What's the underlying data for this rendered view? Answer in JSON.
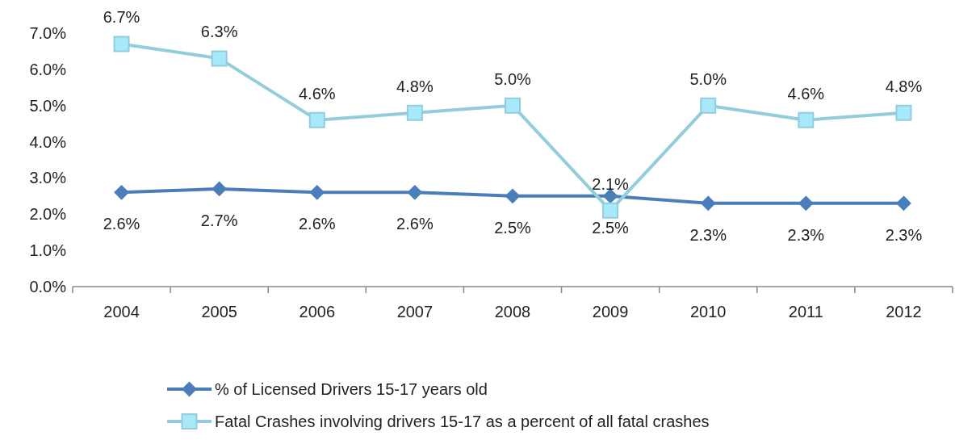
{
  "chart_data": {
    "type": "line",
    "categories": [
      "2004",
      "2005",
      "2006",
      "2007",
      "2008",
      "2009",
      "2010",
      "2011",
      "2012"
    ],
    "ylim": [
      0,
      7
    ],
    "yticks": [
      {
        "value": 0,
        "label": "0.0%"
      },
      {
        "value": 1,
        "label": "1.0%"
      },
      {
        "value": 2,
        "label": "2.0%"
      },
      {
        "value": 3,
        "label": "3.0%"
      },
      {
        "value": 4,
        "label": "4.0%"
      },
      {
        "value": 5,
        "label": "5.0%"
      },
      {
        "value": 6,
        "label": "6.0%"
      },
      {
        "value": 7,
        "label": "7.0%"
      }
    ],
    "grid": false,
    "legend": "bottom",
    "line_style": "solid",
    "series": [
      {
        "name": "% of Licensed Drivers 15-17 years old",
        "color": "#4a7ebb",
        "marker": "diamond",
        "values": [
          2.6,
          2.7,
          2.6,
          2.6,
          2.5,
          2.5,
          2.3,
          2.3,
          2.3
        ],
        "value_labels": [
          "2.6%",
          "2.7%",
          "2.6%",
          "2.6%",
          "2.5%",
          "2.5%",
          "2.3%",
          "2.3%",
          "2.3%"
        ]
      },
      {
        "name": "Fatal Crashes involving drivers 15-17 as a percent of all fatal crashes",
        "color": "#93cddd",
        "marker": "square",
        "values": [
          6.7,
          6.3,
          4.6,
          4.8,
          5.0,
          2.1,
          5.0,
          4.6,
          4.8
        ],
        "value_labels": [
          "6.7%",
          "6.3%",
          "4.6%",
          "4.8%",
          "5.0%",
          "2.1%",
          "5.0%",
          "4.6%",
          "4.8%"
        ]
      }
    ]
  }
}
